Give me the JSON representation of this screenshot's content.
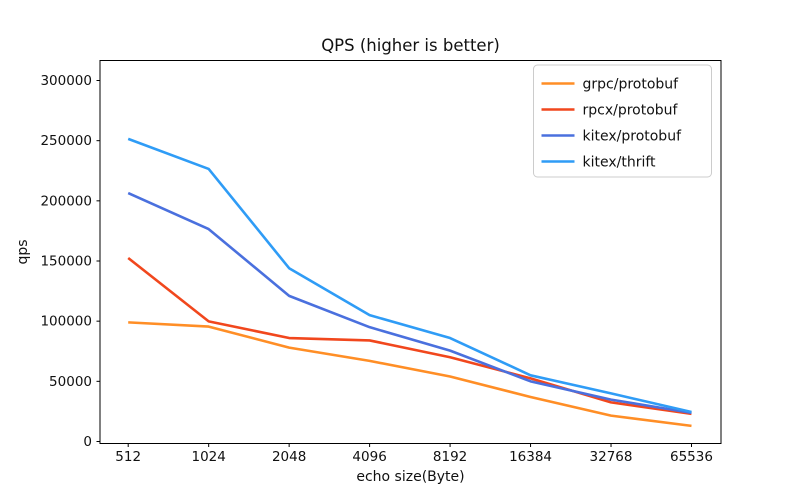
{
  "figure": {
    "background": "#ffffff",
    "text_color": "#111111",
    "spine_color": "#000000",
    "legend_border_color": "#cccccc",
    "legend_background": "#ffffff"
  },
  "chart_data": {
    "type": "line",
    "title": "QPS (higher is better)",
    "xlabel": "echo size(Byte)",
    "ylabel": "qps",
    "categories": [
      "512",
      "1024",
      "2048",
      "4096",
      "8192",
      "16384",
      "32768",
      "65536"
    ],
    "series": [
      {
        "name": "grpc/protobuf",
        "color": "#ff8e26",
        "values": [
          99000,
          95500,
          78000,
          67000,
          54000,
          37000,
          21500,
          13000
        ]
      },
      {
        "name": "rpcx/protobuf",
        "color": "#f1471d",
        "values": [
          152500,
          99800,
          86000,
          84000,
          70000,
          52500,
          32500,
          23000
        ]
      },
      {
        "name": "kitex/protobuf",
        "color": "#4a70de",
        "values": [
          206500,
          176500,
          121000,
          95000,
          75500,
          50000,
          34800,
          23800
        ]
      },
      {
        "name": "kitex/thrift",
        "color": "#2f9cf6",
        "values": [
          251500,
          226500,
          144000,
          105000,
          86000,
          55000,
          40000,
          24500
        ]
      }
    ],
    "y_ticks": [
      0,
      50000,
      100000,
      150000,
      200000,
      250000,
      300000
    ],
    "ylim": [
      -1500,
      316500
    ],
    "grid": false,
    "legend_position": "upper right"
  }
}
